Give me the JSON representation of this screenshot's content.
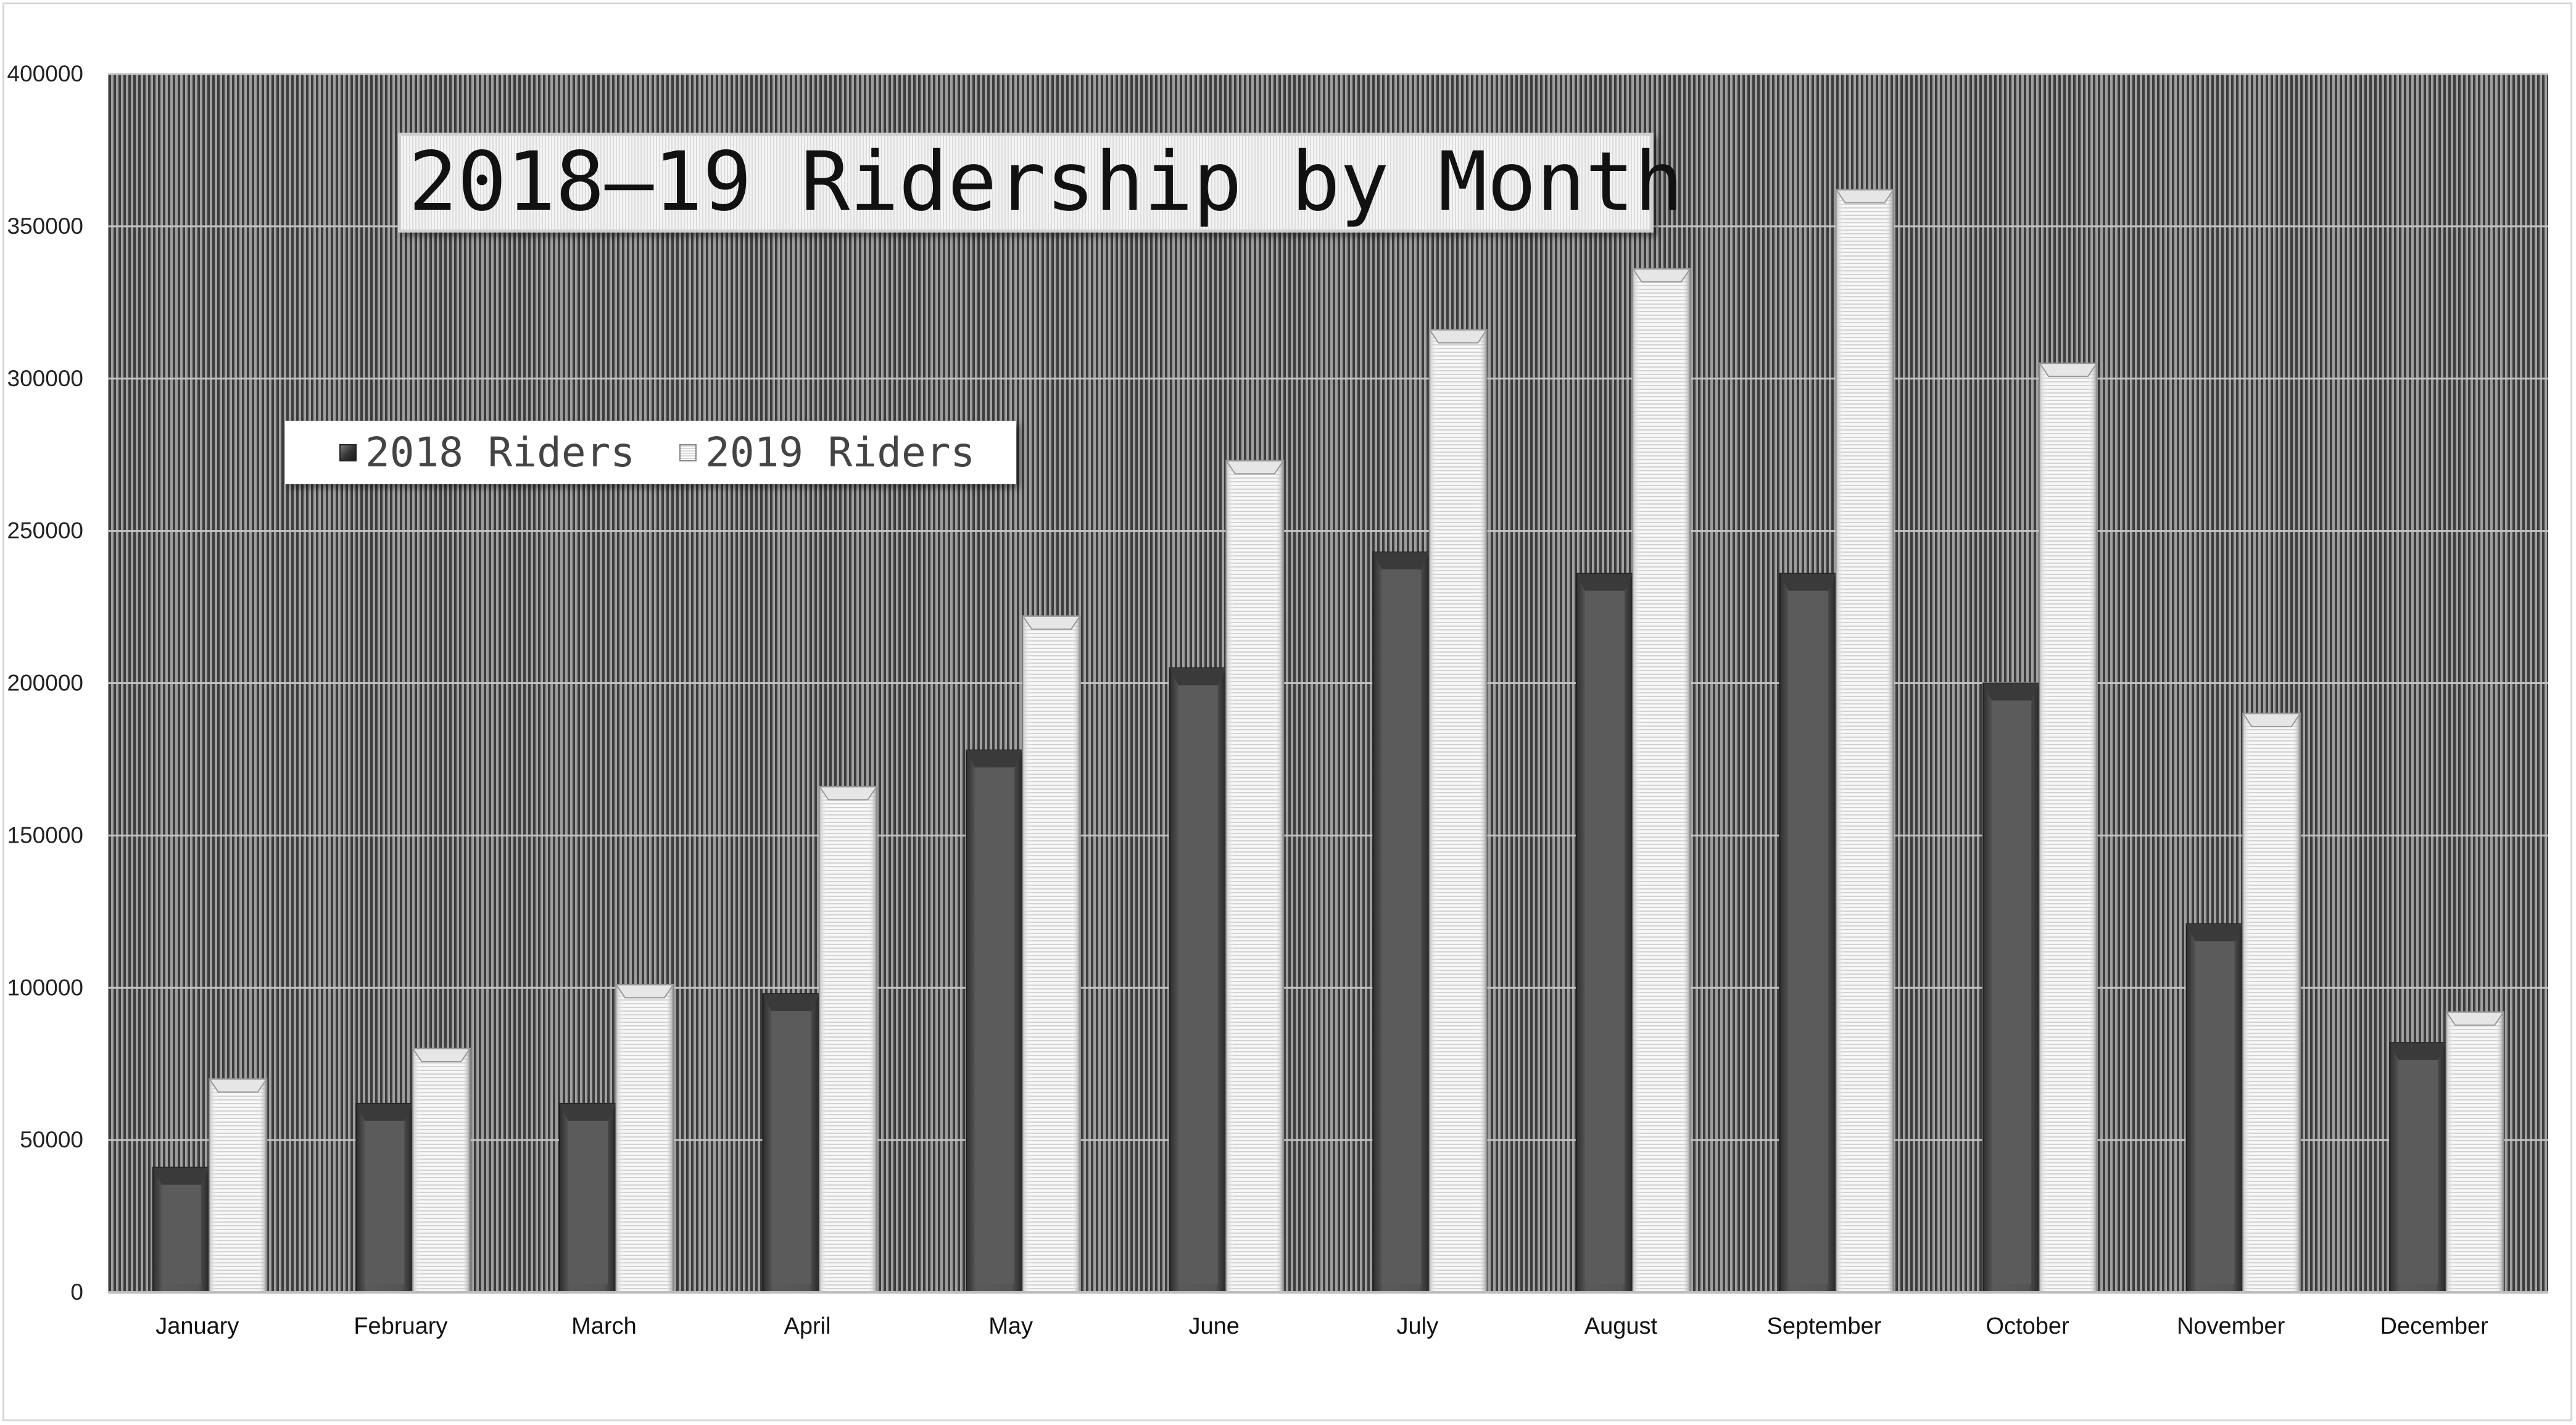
{
  "chart_data": {
    "type": "bar",
    "title": "2018–19 Ridership by Month",
    "xlabel": "",
    "ylabel": "",
    "categories": [
      "January",
      "February",
      "March",
      "April",
      "May",
      "June",
      "July",
      "August",
      "September",
      "October",
      "November",
      "December"
    ],
    "series": [
      {
        "name": "2018 Riders",
        "values": [
          41000,
          62000,
          62000,
          98000,
          178000,
          205000,
          243000,
          236000,
          236000,
          200000,
          121000,
          82000
        ],
        "color": "#4a4a4a"
      },
      {
        "name": "2019 Riders",
        "values": [
          70000,
          80000,
          101000,
          166000,
          222000,
          273000,
          316000,
          336000,
          362000,
          305000,
          190000,
          92000
        ],
        "color": "#f2f2f2"
      }
    ],
    "ylim": [
      0,
      400000
    ],
    "yticks": [
      0,
      50000,
      100000,
      150000,
      200000,
      250000,
      300000,
      350000,
      400000
    ],
    "ytick_labels": [
      "0",
      "50000",
      "100000",
      "150000",
      "200000",
      "250000",
      "300000",
      "350000",
      "400000"
    ],
    "grid": true,
    "legend_position": "upper-left",
    "plot_background": "#8a8a8a"
  }
}
